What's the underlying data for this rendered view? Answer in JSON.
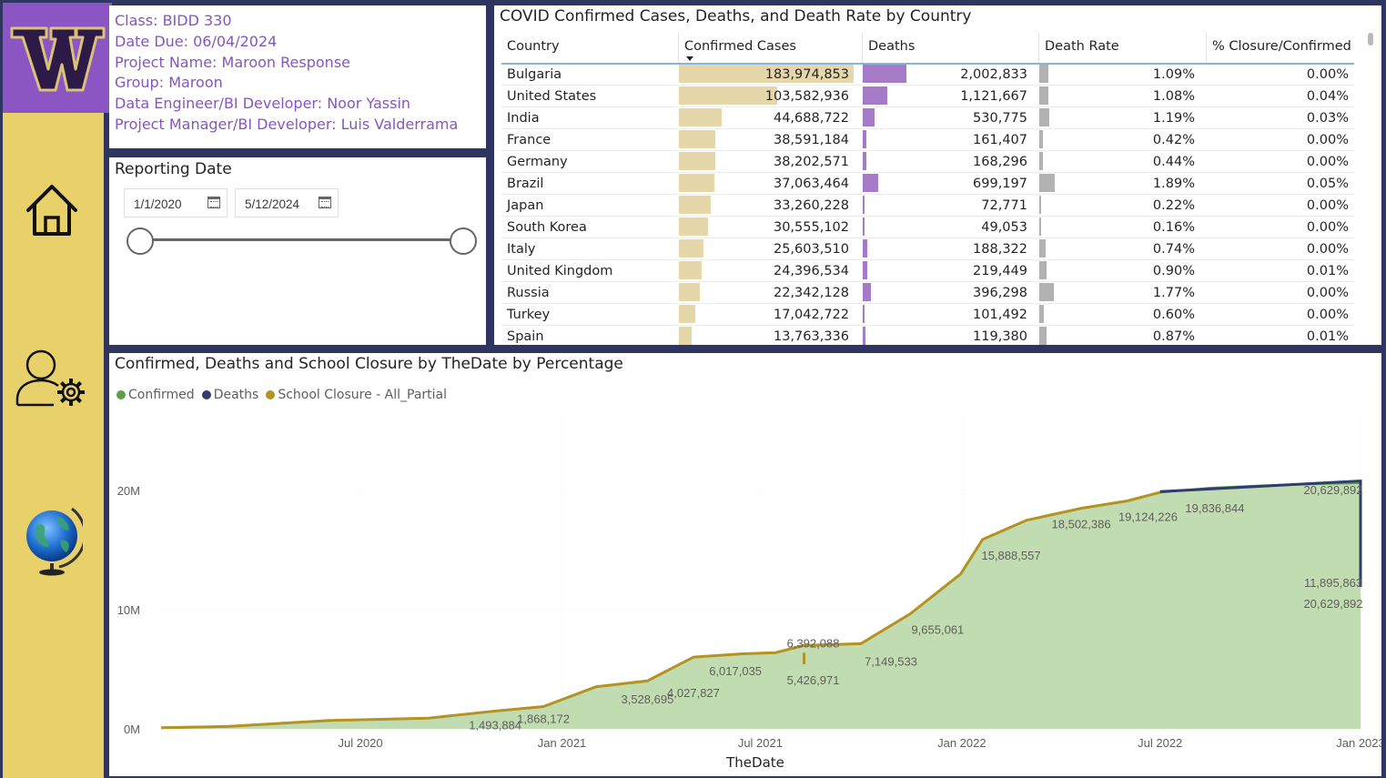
{
  "info": {
    "class": "Class: BIDD 330",
    "date_due": "Date Due: 06/04/2024",
    "project": "Project Name: Maroon Response",
    "group": "Group: Maroon",
    "engineer": "Data Engineer/BI Developer: Noor Yassin",
    "manager": "Project Manager/BI Developer: Luis Valderrama"
  },
  "slicer": {
    "title": "Reporting Date",
    "start": "1/1/2020",
    "end": "5/12/2024",
    "range_fraction": [
      0,
      1
    ]
  },
  "colors": {
    "nav": "#e8d16b",
    "logo": "#8b56c3",
    "confirmed": "#c1dcb0",
    "confirmed_line": "#58a145",
    "deaths": "#2e3d6e",
    "closure": "#b59323",
    "cases_bar": "#e6d7ab",
    "deaths_bar": "#a57ac6",
    "rate_bar": "#b2b2b2"
  },
  "nav_icons": [
    "home-icon",
    "user-settings-icon",
    "globe-icon"
  ],
  "table": {
    "title": "COVID Confirmed Cases, Deaths, and Death Rate by Country",
    "columns": [
      "Country",
      "Confirmed Cases",
      "Deaths",
      "Death Rate",
      "% Closure/Confirmed"
    ],
    "rows": [
      {
        "country": "Bulgaria",
        "cases": "183,974,853",
        "deaths": "2,002,833",
        "rate": "1.09%",
        "closure": "0.00%",
        "cases_v": 183974853,
        "deaths_v": 2002833,
        "rate_v": 1.09
      },
      {
        "country": "United States",
        "cases": "103,582,936",
        "deaths": "1,121,667",
        "rate": "1.08%",
        "closure": "0.04%",
        "cases_v": 103582936,
        "deaths_v": 1121667,
        "rate_v": 1.08
      },
      {
        "country": "India",
        "cases": "44,688,722",
        "deaths": "530,775",
        "rate": "1.19%",
        "closure": "0.03%",
        "cases_v": 44688722,
        "deaths_v": 530775,
        "rate_v": 1.19
      },
      {
        "country": "France",
        "cases": "38,591,184",
        "deaths": "161,407",
        "rate": "0.42%",
        "closure": "0.00%",
        "cases_v": 38591184,
        "deaths_v": 161407,
        "rate_v": 0.42
      },
      {
        "country": "Germany",
        "cases": "38,202,571",
        "deaths": "168,296",
        "rate": "0.44%",
        "closure": "0.00%",
        "cases_v": 38202571,
        "deaths_v": 168296,
        "rate_v": 0.44
      },
      {
        "country": "Brazil",
        "cases": "37,063,464",
        "deaths": "699,197",
        "rate": "1.89%",
        "closure": "0.05%",
        "cases_v": 37063464,
        "deaths_v": 699197,
        "rate_v": 1.89
      },
      {
        "country": "Japan",
        "cases": "33,260,228",
        "deaths": "72,771",
        "rate": "0.22%",
        "closure": "0.00%",
        "cases_v": 33260228,
        "deaths_v": 72771,
        "rate_v": 0.22
      },
      {
        "country": "South Korea",
        "cases": "30,555,102",
        "deaths": "49,053",
        "rate": "0.16%",
        "closure": "0.00%",
        "cases_v": 30555102,
        "deaths_v": 49053,
        "rate_v": 0.16
      },
      {
        "country": "Italy",
        "cases": "25,603,510",
        "deaths": "188,322",
        "rate": "0.74%",
        "closure": "0.00%",
        "cases_v": 25603510,
        "deaths_v": 188322,
        "rate_v": 0.74
      },
      {
        "country": "United Kingdom",
        "cases": "24,396,534",
        "deaths": "219,449",
        "rate": "0.90%",
        "closure": "0.01%",
        "cases_v": 24396534,
        "deaths_v": 219449,
        "rate_v": 0.9
      },
      {
        "country": "Russia",
        "cases": "22,342,128",
        "deaths": "396,298",
        "rate": "1.77%",
        "closure": "0.00%",
        "cases_v": 22342128,
        "deaths_v": 396298,
        "rate_v": 1.77
      },
      {
        "country": "Turkey",
        "cases": "17,042,722",
        "deaths": "101,492",
        "rate": "0.60%",
        "closure": "0.00%",
        "cases_v": 17042722,
        "deaths_v": 101492,
        "rate_v": 0.6
      },
      {
        "country": "Spain",
        "cases": "13,763,336",
        "deaths": "119,380",
        "rate": "0.87%",
        "closure": "0.01%",
        "cases_v": 13763336,
        "deaths_v": 119380,
        "rate_v": 0.87
      }
    ]
  },
  "chart_data": {
    "type": "area",
    "title": "Confirmed, Deaths and School Closure by TheDate by Percentage",
    "xlabel": "TheDate",
    "ylabel": "",
    "legend": [
      "Confirmed",
      "Deaths",
      "School Closure - All_Partial"
    ],
    "legend_position": "top-left",
    "ylim": [
      0,
      30000000
    ],
    "yticks": [
      "0M",
      "10M",
      "20M"
    ],
    "xticks": [
      "Jul 2020",
      "Jan 2021",
      "Jul 2021",
      "Jan 2022",
      "Jul 2022",
      "Jan 2023"
    ],
    "grid": true,
    "series": [
      {
        "name": "Confirmed",
        "x": [
          "2020-01-01",
          "2020-03-01",
          "2020-06-01",
          "2020-09-01",
          "2020-11-01",
          "2020-12-15",
          "2021-02-01",
          "2021-03-20",
          "2021-05-01",
          "2021-06-15",
          "2021-07-15",
          "2021-08-10",
          "2021-10-01",
          "2021-11-15",
          "2021-12-31",
          "2022-01-20",
          "2022-03-01",
          "2022-04-20",
          "2022-06-01",
          "2022-07-01",
          "2022-08-15",
          "2022-10-01",
          "2022-11-20",
          "2022-12-31"
        ],
        "y": [
          100000,
          200000,
          700000,
          900000,
          1493884,
          1868172,
          3528695,
          4027827,
          6017035,
          6300000,
          6392088,
          7000000,
          7149533,
          9655061,
          13000000,
          15888557,
          17500000,
          18502386,
          19124226,
          19836844,
          20200000,
          20400000,
          20550000,
          20629892
        ]
      },
      {
        "name": "Deaths",
        "x": [
          "2022-07-01",
          "2022-12-31"
        ],
        "y": [
          19900000,
          20800000
        ]
      },
      {
        "name": "School Closure - All_Partial",
        "x": [
          "2020-01-01",
          "2021-07-15",
          "2021-08-10",
          "2022-07-01"
        ],
        "y": [
          100000,
          6392088,
          5426971,
          19836844
        ]
      }
    ],
    "data_labels": [
      {
        "date": "2020-11-01",
        "value": 1493884,
        "text": "1,493,884"
      },
      {
        "date": "2020-12-15",
        "value": 1868172,
        "text": "1,868,172"
      },
      {
        "date": "2021-03-20",
        "value": 3528695,
        "text": "3,528,695"
      },
      {
        "date": "2021-05-01",
        "value": 4027827,
        "text": "4,027,827"
      },
      {
        "date": "2021-06-15",
        "value": 6017035,
        "text": "6,017,035"
      },
      {
        "date": "2021-08-10",
        "value": 5426971,
        "text": "5,426,971"
      },
      {
        "date": "2021-08-10",
        "value": 6392088,
        "text": "6,392,088"
      },
      {
        "date": "2021-10-20",
        "value": 7149533,
        "text": "7,149,533"
      },
      {
        "date": "2021-12-10",
        "value": 9655061,
        "text": "9,655,061"
      },
      {
        "date": "2022-02-15",
        "value": 15888557,
        "text": "15,888,557"
      },
      {
        "date": "2022-04-20",
        "value": 18502386,
        "text": "18,502,386"
      },
      {
        "date": "2022-06-20",
        "value": 19124226,
        "text": "19,124,226"
      },
      {
        "date": "2022-08-20",
        "value": 19836844,
        "text": "19,836,844"
      },
      {
        "date": "2022-12-31",
        "value": 20629892,
        "text": "20,629,892"
      },
      {
        "date": "2022-12-31",
        "value": 20629892,
        "text": "20,629,892"
      },
      {
        "date": "2022-12-31",
        "value": 11895863,
        "text": "11,895,863"
      }
    ]
  }
}
